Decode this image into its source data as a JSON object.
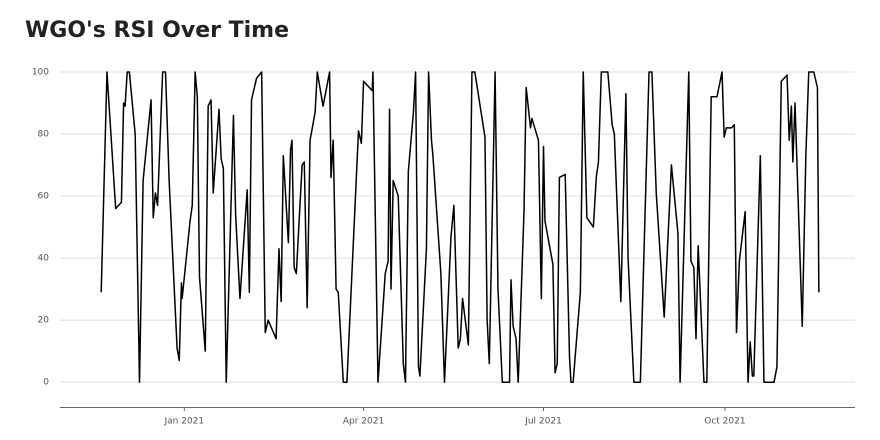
{
  "chart_data": {
    "type": "line",
    "title": "WGO's RSI Over Time",
    "x": [
      2020.885,
      2020.893,
      2020.905,
      2020.913,
      2020.916,
      2020.918,
      2020.921,
      2020.924,
      2020.932,
      2020.938,
      2020.943,
      2020.954,
      2020.957,
      2020.96,
      2020.963,
      2020.97,
      2020.974,
      2020.979,
      2020.99,
      2020.993,
      2020.996,
      2020.997,
      2021.008,
      2021.011,
      2021.015,
      2021.018,
      2021.021,
      2021.029,
      2021.033,
      2021.037,
      2021.04,
      2021.048,
      2021.051,
      2021.054,
      2021.058,
      2021.068,
      2021.071,
      2021.077,
      2021.087,
      2021.09,
      2021.093,
      2021.1,
      2021.107,
      2021.112,
      2021.116,
      2021.127,
      2021.131,
      2021.134,
      2021.137,
      2021.144,
      2021.147,
      2021.149,
      2021.152,
      2021.155,
      2021.163,
      2021.166,
      2021.17,
      2021.174,
      2021.181,
      2021.184,
      2021.192,
      2021.201,
      2021.203,
      2021.206,
      2021.21,
      2021.213,
      2021.22,
      2021.225,
      2021.241,
      2021.245,
      2021.248,
      2021.26,
      2021.261,
      2021.268,
      2021.278,
      2021.282,
      2021.284,
      2021.286,
      2021.289,
      2021.296,
      2021.303,
      2021.306,
      2021.31,
      2021.317,
      2021.32,
      2021.324,
      2021.326,
      2021.335,
      2021.338,
      2021.342,
      2021.344,
      2021.355,
      2021.36,
      2021.369,
      2021.373,
      2021.379,
      2021.382,
      2021.385,
      2021.393,
      2021.398,
      2021.402,
      2021.416,
      2021.419,
      2021.422,
      2021.43,
      2021.434,
      2021.44,
      2021.45,
      2021.452,
      2021.455,
      2021.459,
      2021.462,
      2021.47,
      2021.473,
      2021.479,
      2021.481,
      2021.49,
      2021.494,
      2021.497,
      2021.499,
      2021.51,
      2021.513,
      2021.516,
      2021.519,
      2021.527,
      2021.533,
      2021.535,
      2021.538,
      2021.548,
      2021.552,
      2021.557,
      2021.566,
      2021.57,
      2021.573,
      2021.577,
      2021.586,
      2021.592,
      2021.595,
      2021.604,
      2021.611,
      2021.614,
      2021.622,
      2021.631,
      2021.643,
      2021.647,
      2021.653,
      2021.664,
      2021.674,
      2021.683,
      2021.686,
      2021.698,
      2021.701,
      2021.705,
      2021.708,
      2021.711,
      2021.719,
      2021.723,
      2021.729,
      2021.737,
      2021.744,
      2021.747,
      2021.75,
      2021.757,
      2021.761,
      2021.764,
      2021.768,
      2021.776,
      2021.78,
      2021.783,
      2021.786,
      2021.788,
      2021.797,
      2021.802,
      2021.806,
      2021.816,
      2021.82,
      2021.826,
      2021.834,
      2021.837,
      2021.84,
      2021.842,
      2021.845,
      2021.855,
      2021.86,
      2021.864,
      2021.871,
      2021.876,
      2021.878
    ],
    "values": [
      29,
      100,
      56,
      58,
      90,
      89,
      100,
      100,
      80,
      0,
      65,
      91,
      53,
      61,
      57,
      100,
      100,
      65,
      11,
      7,
      32,
      27,
      52,
      57,
      100,
      92,
      34,
      10,
      89,
      91,
      61,
      88,
      72,
      69,
      0,
      86,
      54,
      27,
      62,
      29,
      91,
      98,
      100,
      16,
      20,
      14,
      43,
      26,
      73,
      45,
      75,
      78,
      37,
      35,
      70,
      71,
      24,
      78,
      87,
      100,
      89,
      100,
      66,
      78,
      30,
      29,
      0,
      0,
      81,
      77,
      97,
      94,
      100,
      0,
      35,
      39,
      88,
      30,
      65,
      60,
      6,
      0,
      68,
      87,
      100,
      5,
      2,
      43,
      100,
      78,
      73,
      35,
      0,
      47,
      57,
      11,
      14,
      27,
      12,
      100,
      100,
      79,
      20,
      6,
      100,
      30,
      0,
      0,
      33,
      18,
      14,
      0,
      55,
      95,
      82,
      85,
      78,
      27,
      76,
      52,
      38,
      3,
      6,
      66,
      67,
      8,
      0,
      0,
      29,
      100,
      53,
      50,
      66,
      71,
      100,
      100,
      83,
      80,
      26,
      93,
      40,
      0,
      0,
      100,
      100,
      61,
      21,
      70,
      48,
      0,
      100,
      39,
      37,
      14,
      44,
      0,
      0,
      92,
      92,
      100,
      79,
      82,
      82,
      83,
      16,
      39,
      55,
      0,
      13,
      2,
      2,
      73,
      0,
      0,
      0,
      5,
      97,
      99,
      78,
      89,
      71,
      90,
      18,
      73,
      100,
      100,
      95,
      29
    ],
    "color": "#000000",
    "xlim": [
      2020.828,
      2021.928
    ],
    "xticks": [
      {
        "value": 2021.0,
        "label": "Jan 2021"
      },
      {
        "value": 2021.248,
        "label": "Apr 2021"
      },
      {
        "value": 2021.497,
        "label": "Jul 2021"
      },
      {
        "value": 2021.748,
        "label": "Oct 2021"
      }
    ],
    "ylim": [
      -8,
      100
    ],
    "yticks": [
      0,
      20,
      40,
      60,
      80,
      100
    ],
    "grid": true
  }
}
